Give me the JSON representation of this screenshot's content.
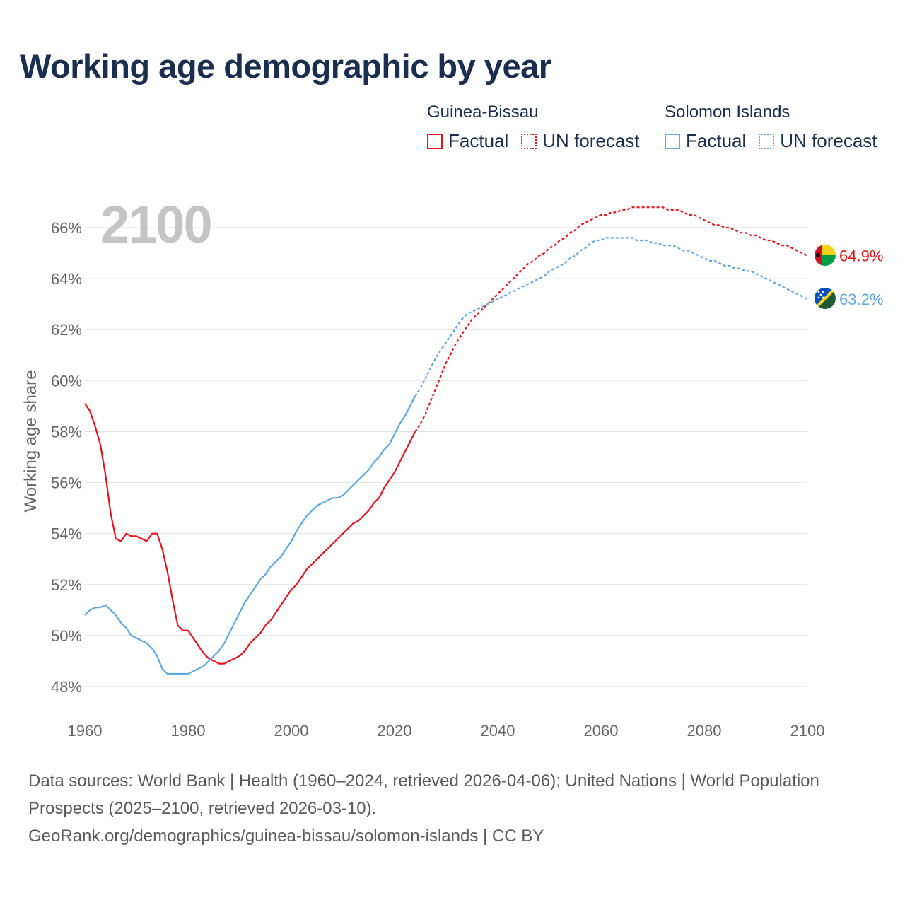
{
  "page": {
    "title": "Working age demographic by year",
    "year_watermark": "2100"
  },
  "legend": [
    {
      "country": "Guinea-Bissau",
      "factual_label": "Factual",
      "forecast_label": "UN forecast",
      "color": "#e8141c"
    },
    {
      "country": "Solomon Islands",
      "factual_label": "Factual",
      "forecast_label": "UN forecast",
      "color": "#5da8e6"
    }
  ],
  "footer": {
    "sources": "Data sources: World Bank | Health (1960–2024, retrieved 2026-04-06); United Nations | World Population Prospects (2025–2100, retrieved 2026-03-10).",
    "attribution": "GeoRank.org/demographics/guinea-bissau/solomon-islands | CC BY"
  },
  "chart_data": {
    "type": "line",
    "title": "Working age demographic by year",
    "xlabel": "",
    "ylabel": "Working age share",
    "xlim": [
      1960,
      2100
    ],
    "ylim": [
      47,
      67.5
    ],
    "x_ticks": [
      1960,
      1980,
      2000,
      2020,
      2040,
      2060,
      2080,
      2100
    ],
    "y_ticks": [
      48,
      50,
      52,
      54,
      56,
      58,
      60,
      62,
      64,
      66
    ],
    "y_tick_labels": [
      "48%",
      "50%",
      "52%",
      "54%",
      "56%",
      "58%",
      "60%",
      "62%",
      "64%",
      "66%"
    ],
    "x_tick_labels": [
      "1960",
      "1980",
      "2000",
      "2020",
      "2040",
      "2060",
      "2080",
      "2100"
    ],
    "grid": true,
    "series": [
      {
        "name": "Guinea-Bissau",
        "color": "#e8141c",
        "flag": "guinea-bissau-flag-icon",
        "end_label": "64.9%",
        "factual": [
          [
            1960,
            59.1
          ],
          [
            1961,
            58.8
          ],
          [
            1962,
            58.2
          ],
          [
            1963,
            57.5
          ],
          [
            1964,
            56.3
          ],
          [
            1965,
            54.8
          ],
          [
            1966,
            53.8
          ],
          [
            1967,
            53.7
          ],
          [
            1968,
            54.0
          ],
          [
            1969,
            53.9
          ],
          [
            1970,
            53.9
          ],
          [
            1971,
            53.8
          ],
          [
            1972,
            53.7
          ],
          [
            1973,
            54.0
          ],
          [
            1974,
            54.0
          ],
          [
            1975,
            53.4
          ],
          [
            1976,
            52.5
          ],
          [
            1977,
            51.4
          ],
          [
            1978,
            50.4
          ],
          [
            1979,
            50.2
          ],
          [
            1980,
            50.2
          ],
          [
            1981,
            49.9
          ],
          [
            1982,
            49.6
          ],
          [
            1983,
            49.3
          ],
          [
            1984,
            49.1
          ],
          [
            1985,
            49.0
          ],
          [
            1986,
            48.9
          ],
          [
            1987,
            48.9
          ],
          [
            1988,
            49.0
          ],
          [
            1989,
            49.1
          ],
          [
            1990,
            49.2
          ],
          [
            1991,
            49.4
          ],
          [
            1992,
            49.7
          ],
          [
            1993,
            49.9
          ],
          [
            1994,
            50.1
          ],
          [
            1995,
            50.4
          ],
          [
            1996,
            50.6
          ],
          [
            1997,
            50.9
          ],
          [
            1998,
            51.2
          ],
          [
            1999,
            51.5
          ],
          [
            2000,
            51.8
          ],
          [
            2001,
            52.0
          ],
          [
            2002,
            52.3
          ],
          [
            2003,
            52.6
          ],
          [
            2004,
            52.8
          ],
          [
            2005,
            53.0
          ],
          [
            2006,
            53.2
          ],
          [
            2007,
            53.4
          ],
          [
            2008,
            53.6
          ],
          [
            2009,
            53.8
          ],
          [
            2010,
            54.0
          ],
          [
            2011,
            54.2
          ],
          [
            2012,
            54.4
          ],
          [
            2013,
            54.5
          ],
          [
            2014,
            54.7
          ],
          [
            2015,
            54.9
          ],
          [
            2016,
            55.2
          ],
          [
            2017,
            55.4
          ],
          [
            2018,
            55.8
          ],
          [
            2019,
            56.1
          ],
          [
            2020,
            56.4
          ],
          [
            2021,
            56.8
          ],
          [
            2022,
            57.2
          ],
          [
            2023,
            57.6
          ],
          [
            2024,
            58.0
          ]
        ],
        "forecast": [
          [
            2024,
            58.0
          ],
          [
            2025,
            58.3
          ],
          [
            2026,
            58.7
          ],
          [
            2027,
            59.2
          ],
          [
            2028,
            59.7
          ],
          [
            2029,
            60.2
          ],
          [
            2030,
            60.7
          ],
          [
            2031,
            61.1
          ],
          [
            2032,
            61.5
          ],
          [
            2033,
            61.8
          ],
          [
            2034,
            62.1
          ],
          [
            2035,
            62.4
          ],
          [
            2036,
            62.6
          ],
          [
            2037,
            62.8
          ],
          [
            2038,
            63.0
          ],
          [
            2039,
            63.2
          ],
          [
            2040,
            63.4
          ],
          [
            2041,
            63.6
          ],
          [
            2042,
            63.8
          ],
          [
            2043,
            64.0
          ],
          [
            2044,
            64.2
          ],
          [
            2045,
            64.4
          ],
          [
            2046,
            64.6
          ],
          [
            2047,
            64.7
          ],
          [
            2048,
            64.9
          ],
          [
            2049,
            65.0
          ],
          [
            2050,
            65.2
          ],
          [
            2051,
            65.3
          ],
          [
            2052,
            65.5
          ],
          [
            2053,
            65.6
          ],
          [
            2054,
            65.8
          ],
          [
            2055,
            65.9
          ],
          [
            2056,
            66.1
          ],
          [
            2057,
            66.2
          ],
          [
            2058,
            66.3
          ],
          [
            2059,
            66.4
          ],
          [
            2060,
            66.5
          ],
          [
            2061,
            66.5
          ],
          [
            2062,
            66.6
          ],
          [
            2063,
            66.6
          ],
          [
            2064,
            66.7
          ],
          [
            2065,
            66.7
          ],
          [
            2066,
            66.8
          ],
          [
            2067,
            66.8
          ],
          [
            2068,
            66.8
          ],
          [
            2069,
            66.8
          ],
          [
            2070,
            66.8
          ],
          [
            2071,
            66.8
          ],
          [
            2072,
            66.8
          ],
          [
            2073,
            66.7
          ],
          [
            2074,
            66.7
          ],
          [
            2075,
            66.7
          ],
          [
            2076,
            66.6
          ],
          [
            2077,
            66.5
          ],
          [
            2078,
            66.5
          ],
          [
            2079,
            66.4
          ],
          [
            2080,
            66.3
          ],
          [
            2081,
            66.2
          ],
          [
            2082,
            66.1
          ],
          [
            2083,
            66.1
          ],
          [
            2084,
            66.0
          ],
          [
            2085,
            66.0
          ],
          [
            2086,
            65.9
          ],
          [
            2087,
            65.8
          ],
          [
            2088,
            65.8
          ],
          [
            2089,
            65.7
          ],
          [
            2090,
            65.7
          ],
          [
            2091,
            65.6
          ],
          [
            2092,
            65.5
          ],
          [
            2093,
            65.5
          ],
          [
            2094,
            65.4
          ],
          [
            2095,
            65.3
          ],
          [
            2096,
            65.3
          ],
          [
            2097,
            65.2
          ],
          [
            2098,
            65.1
          ],
          [
            2099,
            65.0
          ],
          [
            2100,
            64.9
          ]
        ]
      },
      {
        "name": "Solomon Islands",
        "color": "#5da8e6",
        "flag": "solomon-islands-flag-icon",
        "end_label": "63.2%",
        "factual": [
          [
            1960,
            50.8
          ],
          [
            1961,
            51.0
          ],
          [
            1962,
            51.1
          ],
          [
            1963,
            51.1
          ],
          [
            1964,
            51.2
          ],
          [
            1965,
            51.0
          ],
          [
            1966,
            50.8
          ],
          [
            1967,
            50.5
          ],
          [
            1968,
            50.3
          ],
          [
            1969,
            50.0
          ],
          [
            1970,
            49.9
          ],
          [
            1971,
            49.8
          ],
          [
            1972,
            49.7
          ],
          [
            1973,
            49.5
          ],
          [
            1974,
            49.2
          ],
          [
            1975,
            48.7
          ],
          [
            1976,
            48.5
          ],
          [
            1977,
            48.5
          ],
          [
            1978,
            48.5
          ],
          [
            1979,
            48.5
          ],
          [
            1980,
            48.5
          ],
          [
            1981,
            48.6
          ],
          [
            1982,
            48.7
          ],
          [
            1983,
            48.8
          ],
          [
            1984,
            49.0
          ],
          [
            1985,
            49.2
          ],
          [
            1986,
            49.4
          ],
          [
            1987,
            49.7
          ],
          [
            1988,
            50.1
          ],
          [
            1989,
            50.5
          ],
          [
            1990,
            50.9
          ],
          [
            1991,
            51.3
          ],
          [
            1992,
            51.6
          ],
          [
            1993,
            51.9
          ],
          [
            1994,
            52.2
          ],
          [
            1995,
            52.4
          ],
          [
            1996,
            52.7
          ],
          [
            1997,
            52.9
          ],
          [
            1998,
            53.1
          ],
          [
            1999,
            53.4
          ],
          [
            2000,
            53.7
          ],
          [
            2001,
            54.1
          ],
          [
            2002,
            54.4
          ],
          [
            2003,
            54.7
          ],
          [
            2004,
            54.9
          ],
          [
            2005,
            55.1
          ],
          [
            2006,
            55.2
          ],
          [
            2007,
            55.3
          ],
          [
            2008,
            55.4
          ],
          [
            2009,
            55.4
          ],
          [
            2010,
            55.5
          ],
          [
            2011,
            55.7
          ],
          [
            2012,
            55.9
          ],
          [
            2013,
            56.1
          ],
          [
            2014,
            56.3
          ],
          [
            2015,
            56.5
          ],
          [
            2016,
            56.8
          ],
          [
            2017,
            57.0
          ],
          [
            2018,
            57.3
          ],
          [
            2019,
            57.5
          ],
          [
            2020,
            57.9
          ],
          [
            2021,
            58.3
          ],
          [
            2022,
            58.6
          ],
          [
            2023,
            59.0
          ],
          [
            2024,
            59.4
          ]
        ],
        "forecast": [
          [
            2024,
            59.4
          ],
          [
            2025,
            59.7
          ],
          [
            2026,
            60.1
          ],
          [
            2027,
            60.5
          ],
          [
            2028,
            60.9
          ],
          [
            2029,
            61.2
          ],
          [
            2030,
            61.5
          ],
          [
            2031,
            61.8
          ],
          [
            2032,
            62.1
          ],
          [
            2033,
            62.4
          ],
          [
            2034,
            62.6
          ],
          [
            2035,
            62.7
          ],
          [
            2036,
            62.8
          ],
          [
            2037,
            62.9
          ],
          [
            2038,
            63.0
          ],
          [
            2039,
            63.1
          ],
          [
            2040,
            63.2
          ],
          [
            2041,
            63.3
          ],
          [
            2042,
            63.4
          ],
          [
            2043,
            63.5
          ],
          [
            2044,
            63.6
          ],
          [
            2045,
            63.7
          ],
          [
            2046,
            63.8
          ],
          [
            2047,
            63.9
          ],
          [
            2048,
            64.0
          ],
          [
            2049,
            64.1
          ],
          [
            2050,
            64.3
          ],
          [
            2051,
            64.4
          ],
          [
            2052,
            64.5
          ],
          [
            2053,
            64.6
          ],
          [
            2054,
            64.8
          ],
          [
            2055,
            64.9
          ],
          [
            2056,
            65.1
          ],
          [
            2057,
            65.2
          ],
          [
            2058,
            65.4
          ],
          [
            2059,
            65.5
          ],
          [
            2060,
            65.5
          ],
          [
            2061,
            65.6
          ],
          [
            2062,
            65.6
          ],
          [
            2063,
            65.6
          ],
          [
            2064,
            65.6
          ],
          [
            2065,
            65.6
          ],
          [
            2066,
            65.6
          ],
          [
            2067,
            65.5
          ],
          [
            2068,
            65.5
          ],
          [
            2069,
            65.5
          ],
          [
            2070,
            65.4
          ],
          [
            2071,
            65.4
          ],
          [
            2072,
            65.3
          ],
          [
            2073,
            65.3
          ],
          [
            2074,
            65.3
          ],
          [
            2075,
            65.2
          ],
          [
            2076,
            65.1
          ],
          [
            2077,
            65.1
          ],
          [
            2078,
            65.0
          ],
          [
            2079,
            64.9
          ],
          [
            2080,
            64.8
          ],
          [
            2081,
            64.7
          ],
          [
            2082,
            64.7
          ],
          [
            2083,
            64.6
          ],
          [
            2084,
            64.5
          ],
          [
            2085,
            64.5
          ],
          [
            2086,
            64.4
          ],
          [
            2087,
            64.4
          ],
          [
            2088,
            64.3
          ],
          [
            2089,
            64.3
          ],
          [
            2090,
            64.2
          ],
          [
            2091,
            64.1
          ],
          [
            2092,
            64.0
          ],
          [
            2093,
            63.9
          ],
          [
            2094,
            63.8
          ],
          [
            2095,
            63.7
          ],
          [
            2096,
            63.6
          ],
          [
            2097,
            63.5
          ],
          [
            2098,
            63.4
          ],
          [
            2099,
            63.3
          ],
          [
            2100,
            63.2
          ]
        ]
      }
    ]
  }
}
